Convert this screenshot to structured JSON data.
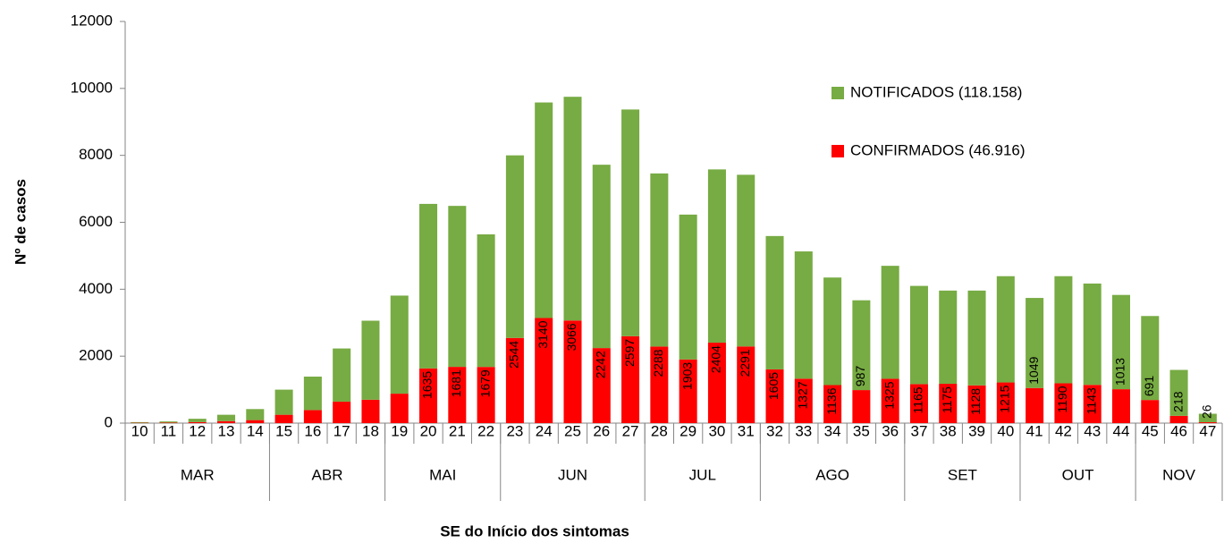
{
  "chart_data": {
    "type": "stacked_bar",
    "xlabel": "SE do Início dos sintomas",
    "ylabel": "Nº de casos",
    "categories": [
      "10",
      "11",
      "12",
      "13",
      "14",
      "15",
      "16",
      "17",
      "18",
      "19",
      "20",
      "21",
      "22",
      "23",
      "24",
      "25",
      "26",
      "27",
      "28",
      "29",
      "30",
      "31",
      "32",
      "33",
      "34",
      "35",
      "36",
      "37",
      "38",
      "39",
      "40",
      "41",
      "42",
      "43",
      "44",
      "45",
      "46",
      "47"
    ],
    "x_groups": [
      {
        "label": "MAR",
        "count": 5
      },
      {
        "label": "ABR",
        "count": 4
      },
      {
        "label": "MAI",
        "count": 4
      },
      {
        "label": "JUN",
        "count": 5
      },
      {
        "label": "JUL",
        "count": 4
      },
      {
        "label": "AGO",
        "count": 5
      },
      {
        "label": "SET",
        "count": 4
      },
      {
        "label": "OUT",
        "count": 4
      },
      {
        "label": "NOV",
        "count": 3
      }
    ],
    "series": [
      {
        "name": "CONFIRMADOS (46.916)",
        "color": "#ff0000",
        "values": [
          10,
          15,
          30,
          60,
          90,
          250,
          390,
          640,
          700,
          880,
          1635,
          1681,
          1679,
          2544,
          3140,
          3066,
          2242,
          2597,
          2288,
          1903,
          2404,
          2291,
          1605,
          1327,
          1136,
          987,
          1325,
          1165,
          1175,
          1128,
          1215,
          1049,
          1190,
          1143,
          1013,
          691,
          218,
          26
        ],
        "value_labels": [
          null,
          null,
          null,
          null,
          null,
          null,
          null,
          null,
          null,
          null,
          "1635",
          "1681",
          "1679",
          "2544",
          "3140",
          "3066",
          "2242",
          "2597",
          "2288",
          "1903",
          "2404",
          "2291",
          "1605",
          "1327",
          "1136",
          "987",
          "1325",
          "1165",
          "1175",
          "1128",
          "1215",
          "1049",
          "1190",
          "1143",
          "1013",
          "691",
          "218",
          "26"
        ]
      },
      {
        "name": "NOTIFICADOS (118.158)",
        "color": "#77ab43",
        "values": [
          20,
          35,
          100,
          190,
          330,
          750,
          1000,
          1590,
          2360,
          2930,
          4915,
          4809,
          3961,
          5456,
          6440,
          6684,
          5478,
          6773,
          5172,
          4327,
          5176,
          5129,
          3985,
          3803,
          3214,
          2683,
          3375,
          2935,
          2785,
          2832,
          3175,
          2691,
          3200,
          3027,
          2817,
          2509,
          1372,
          254
        ]
      }
    ],
    "ylim": [
      0,
      12000
    ],
    "yticks": [
      0,
      2000,
      4000,
      6000,
      8000,
      10000,
      12000
    ]
  }
}
